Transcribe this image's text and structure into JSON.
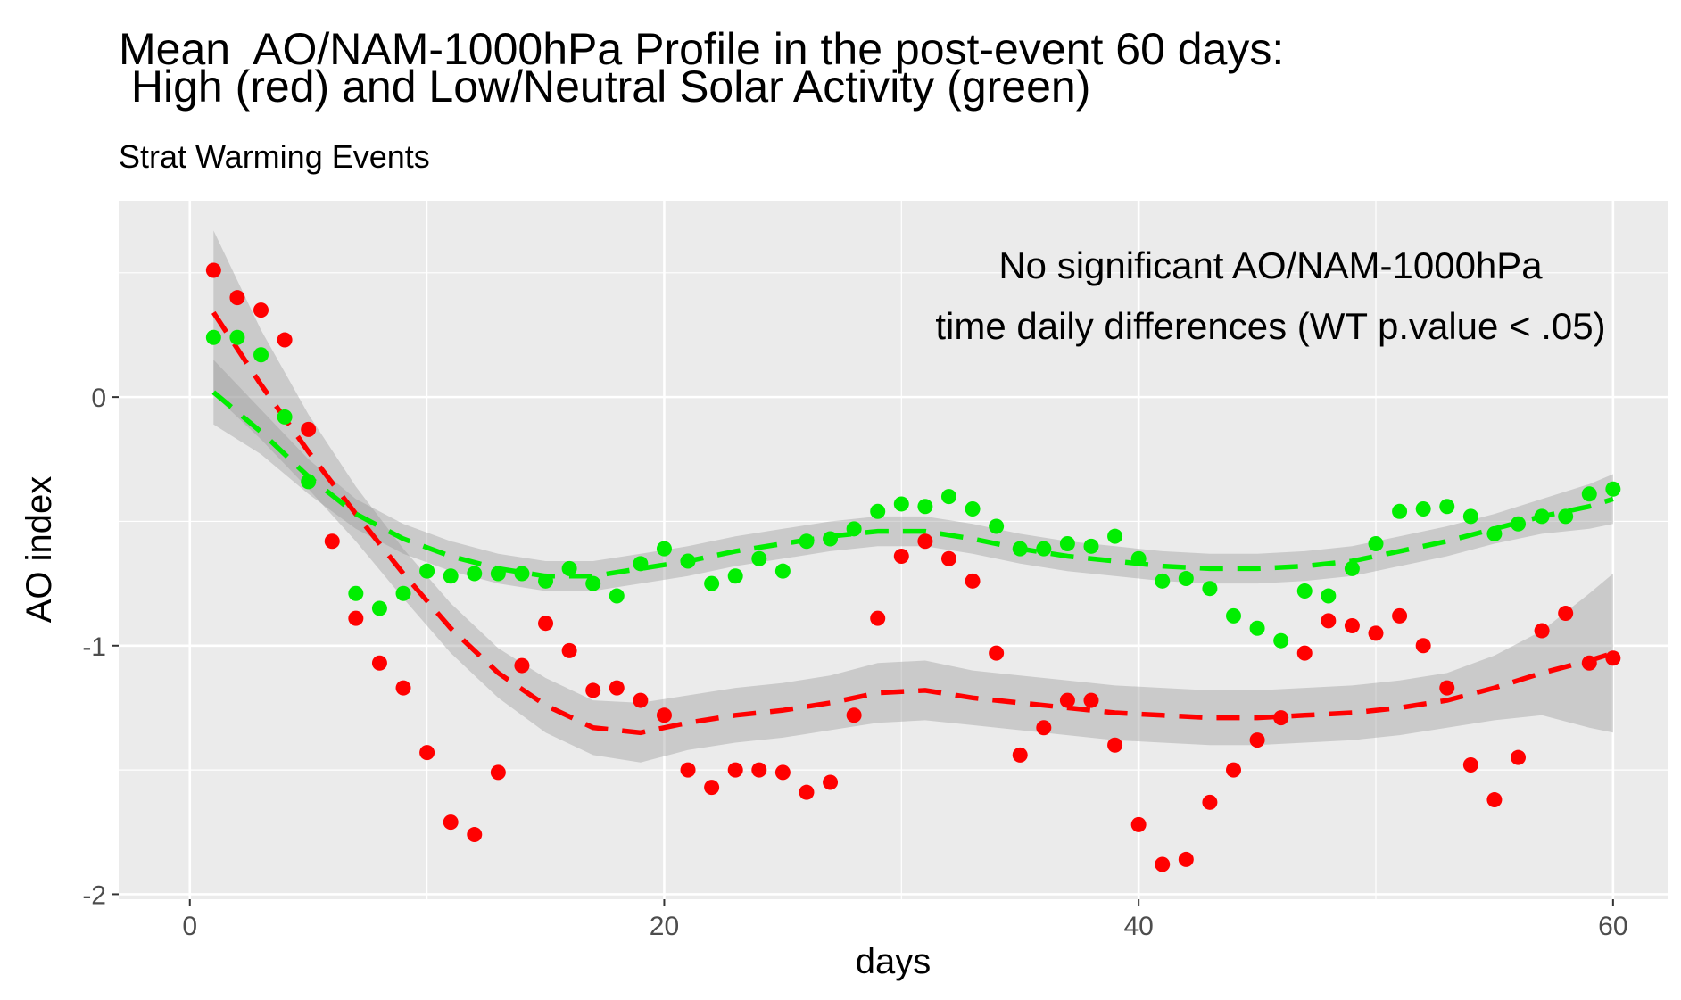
{
  "chart_data": {
    "type": "scatter",
    "title_lines": [
      "Mean  AO/NAM-1000hPa Profile in the post-event 60 days:",
      " High (red) and Low/Neutral Solar Activity (green)"
    ],
    "subtitle": "Strat Warming Events",
    "xlabel": "days",
    "ylabel": "AO index",
    "xlim": [
      -3,
      62.3
    ],
    "ylim": [
      -2.02,
      0.79
    ],
    "x_ticks": [
      0,
      20,
      40,
      60
    ],
    "y_ticks": [
      0,
      -1,
      -2
    ],
    "x_tick_labels": [
      "0",
      "20",
      "40",
      "60"
    ],
    "y_tick_labels": [
      "0",
      "-1",
      "-2"
    ],
    "grid": true,
    "annotation": [
      "No significant AO/NAM-1000hPa",
      "time daily differences (WT p.value < .05)"
    ],
    "series": [
      {
        "color": "#ff0000",
        "x": [
          1,
          2,
          3,
          4,
          5,
          6,
          7,
          8,
          9,
          10,
          11,
          12,
          13,
          14,
          15,
          16,
          17,
          18,
          19,
          20,
          21,
          22,
          23,
          24,
          25,
          26,
          27,
          28,
          29,
          30,
          31,
          32,
          33,
          34,
          35,
          36,
          37,
          38,
          39,
          40,
          41,
          42,
          43,
          44,
          45,
          46,
          47,
          48,
          49,
          50,
          51,
          52,
          53,
          54,
          55,
          56,
          57,
          58,
          59,
          60
        ],
        "y": [
          0.51,
          0.4,
          0.35,
          0.23,
          -0.13,
          -0.58,
          -0.89,
          -1.07,
          -1.17,
          -1.43,
          -1.71,
          -1.76,
          -1.51,
          -1.08,
          -0.91,
          -1.02,
          -1.18,
          -1.17,
          -1.22,
          -1.28,
          -1.5,
          -1.57,
          -1.5,
          -1.5,
          -1.51,
          -1.59,
          -1.55,
          -1.28,
          -0.89,
          -0.64,
          -0.58,
          -0.65,
          -0.74,
          -1.03,
          -1.44,
          -1.33,
          -1.22,
          -1.22,
          -1.4,
          -1.72,
          -1.88,
          -1.86,
          -1.63,
          -1.5,
          -1.38,
          -1.29,
          -1.03,
          -0.9,
          -0.92,
          -0.95,
          -0.88,
          -1.0,
          -1.17,
          -1.48,
          -1.62,
          -1.45,
          -0.94,
          -0.87,
          -1.07,
          -1.05
        ],
        "smooth_x": [
          1,
          3,
          5,
          7,
          9,
          11,
          13,
          15,
          17,
          19,
          21,
          23,
          25,
          27,
          29,
          31,
          33,
          35,
          37,
          39,
          41,
          43,
          45,
          47,
          49,
          51,
          53,
          55,
          57,
          59,
          60
        ],
        "smooth_y": [
          0.34,
          0.05,
          -0.22,
          -0.47,
          -0.71,
          -0.93,
          -1.11,
          -1.24,
          -1.33,
          -1.35,
          -1.31,
          -1.28,
          -1.26,
          -1.23,
          -1.19,
          -1.18,
          -1.21,
          -1.23,
          -1.25,
          -1.27,
          -1.28,
          -1.29,
          -1.29,
          -1.28,
          -1.27,
          -1.25,
          -1.22,
          -1.17,
          -1.11,
          -1.06,
          -1.03
        ],
        "ci_half": [
          0.33,
          0.22,
          0.15,
          0.11,
          0.1,
          0.1,
          0.1,
          0.11,
          0.11,
          0.12,
          0.11,
          0.11,
          0.11,
          0.11,
          0.12,
          0.12,
          0.11,
          0.11,
          0.11,
          0.11,
          0.11,
          0.11,
          0.11,
          0.11,
          0.11,
          0.11,
          0.11,
          0.13,
          0.17,
          0.27,
          0.32
        ]
      },
      {
        "color": "#00ee00",
        "x": [
          1,
          2,
          3,
          4,
          5,
          6,
          7,
          8,
          9,
          10,
          11,
          12,
          13,
          14,
          15,
          16,
          17,
          18,
          19,
          20,
          21,
          22,
          23,
          24,
          25,
          26,
          27,
          28,
          29,
          30,
          31,
          32,
          33,
          34,
          35,
          36,
          37,
          38,
          39,
          40,
          41,
          42,
          43,
          44,
          45,
          46,
          47,
          48,
          49,
          50,
          51,
          52,
          53,
          54,
          55,
          56,
          57,
          58,
          59,
          60
        ],
        "y": [
          0.24,
          0.24,
          0.17,
          -0.08,
          -0.34,
          null,
          -0.79,
          -0.85,
          -0.79,
          -0.7,
          -0.72,
          -0.71,
          -0.71,
          -0.71,
          -0.74,
          -0.69,
          -0.75,
          -0.8,
          -0.67,
          -0.61,
          -0.66,
          -0.75,
          -0.72,
          -0.65,
          -0.7,
          -0.58,
          -0.57,
          -0.53,
          -0.46,
          -0.43,
          -0.44,
          -0.4,
          -0.45,
          -0.52,
          -0.61,
          -0.61,
          -0.59,
          -0.6,
          -0.56,
          -0.65,
          -0.74,
          -0.73,
          -0.77,
          -0.88,
          -0.93,
          -0.98,
          -0.78,
          -0.8,
          -0.69,
          -0.59,
          -0.46,
          -0.45,
          -0.44,
          -0.48,
          -0.55,
          -0.51,
          -0.48,
          -0.48,
          -0.39,
          -0.37
        ],
        "smooth_x": [
          1,
          3,
          5,
          7,
          9,
          11,
          13,
          15,
          17,
          19,
          21,
          23,
          25,
          27,
          29,
          31,
          33,
          35,
          37,
          39,
          41,
          43,
          45,
          47,
          49,
          51,
          53,
          55,
          57,
          59,
          60
        ],
        "smooth_y": [
          0.02,
          -0.14,
          -0.32,
          -0.47,
          -0.57,
          -0.64,
          -0.69,
          -0.72,
          -0.72,
          -0.69,
          -0.66,
          -0.62,
          -0.59,
          -0.56,
          -0.54,
          -0.54,
          -0.57,
          -0.61,
          -0.64,
          -0.66,
          -0.68,
          -0.69,
          -0.69,
          -0.68,
          -0.66,
          -0.62,
          -0.58,
          -0.53,
          -0.48,
          -0.44,
          -0.41
        ],
        "ci_half": [
          0.13,
          0.09,
          0.07,
          0.06,
          0.06,
          0.06,
          0.06,
          0.06,
          0.06,
          0.06,
          0.06,
          0.06,
          0.06,
          0.06,
          0.06,
          0.06,
          0.06,
          0.06,
          0.06,
          0.06,
          0.06,
          0.06,
          0.06,
          0.06,
          0.06,
          0.06,
          0.06,
          0.06,
          0.07,
          0.09,
          0.1
        ]
      }
    ]
  }
}
